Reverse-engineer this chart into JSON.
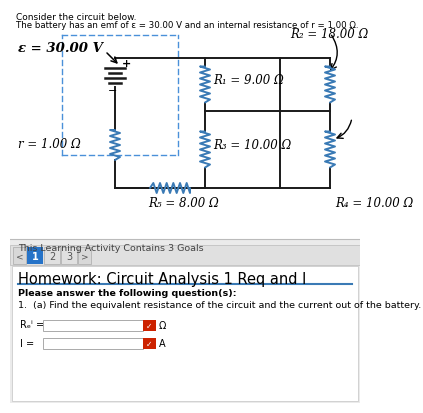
{
  "title_line1": "Consider the circuit below.",
  "title_line2": "The battery has an emf of ε = 30.00 V and an internal resistance of r = 1.00 Ω.",
  "emf_label": "ε = 30.00 V",
  "r_label": "r = 1.00 Ω",
  "R1_label": "R₁ = 9.00 Ω",
  "R2_label": "R₂ = 18.00 Ω",
  "R3_label": "R₃ = 10.00 Ω",
  "R4_label": "R₄ = 10.00 Ω",
  "R5_label": "R₅ = 8.00 Ω",
  "activity_text": "This Learning Activity Contains 3 Goals",
  "homework_title": "Homework: Circuit Analysis 1 Req and I",
  "please_answer": "Please answer the following question(s):",
  "question": "1.  (a) Find the equivalent resistance of the circuit and the current out of the battery.",
  "req_label": "Rₑⁱ =",
  "i_label": "I =",
  "omega": "Ω",
  "amp": "A",
  "bg_top": "#ffffff",
  "bg_bottom": "#eeeeee",
  "dashed_color": "#4a90d9",
  "wire_color": "#1a1a1a",
  "resistor_color": "#3a7ab5",
  "page_num_bg": "#2673c8",
  "submit_color": "#cc2200",
  "blue_line_color": "#3a7ab5",
  "text_dark": "#333333",
  "hw_border": "#cccccc"
}
